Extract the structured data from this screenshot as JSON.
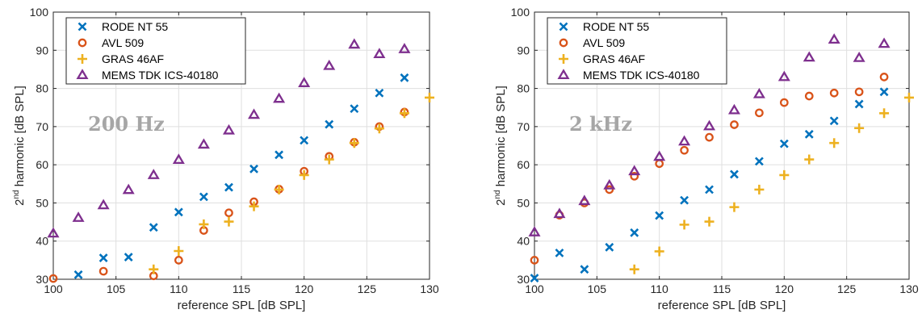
{
  "chart_data": [
    {
      "type": "scatter",
      "annotation": "200 Hz",
      "xlabel": "reference SPL [dB SPL]",
      "ylabel": {
        "pre": "2",
        "sup": "nd",
        "post": " harmonic [dB SPL]"
      },
      "xlim": [
        100,
        130
      ],
      "ylim": [
        30,
        100
      ],
      "xticks": [
        100,
        105,
        110,
        115,
        120,
        125,
        130
      ],
      "yticks": [
        30,
        40,
        50,
        60,
        70,
        80,
        90,
        100
      ],
      "grid": true,
      "legend_position": "top-left",
      "series": [
        {
          "name": "RODE NT 55",
          "marker": "x",
          "color": "#0072BD",
          "x": [
            102,
            104,
            106,
            108,
            110,
            112,
            114,
            116,
            118,
            120,
            122,
            124,
            126,
            128
          ],
          "y": [
            31.2,
            35.6,
            35.8,
            43.6,
            47.6,
            51.6,
            54.1,
            58.9,
            62.6,
            66.4,
            70.6,
            74.7,
            78.8,
            82.8
          ]
        },
        {
          "name": "AVL 509",
          "marker": "o",
          "color": "#D95319",
          "x": [
            100,
            104,
            108,
            110,
            112,
            114,
            116,
            118,
            120,
            122,
            124,
            126,
            128
          ],
          "y": [
            30.2,
            32.1,
            30.9,
            35.0,
            42.8,
            47.4,
            50.3,
            53.6,
            58.3,
            62.2,
            65.9,
            70.0,
            73.8
          ]
        },
        {
          "name": "GRAS 46AF",
          "marker": "+",
          "color": "#EDB120",
          "x": [
            108,
            110,
            112,
            114,
            116,
            118,
            120,
            122,
            124,
            126,
            128,
            130
          ],
          "y": [
            32.6,
            37.4,
            44.4,
            45.1,
            49.1,
            53.5,
            57.3,
            61.4,
            65.7,
            69.5,
            73.5,
            77.6
          ]
        },
        {
          "name": "MEMS TDK ICS-40180",
          "marker": "triangle",
          "color": "#7E2F8E",
          "x": [
            100,
            102,
            104,
            106,
            108,
            110,
            112,
            114,
            116,
            118,
            120,
            122,
            124,
            126,
            128
          ],
          "y": [
            42.0,
            46.1,
            49.4,
            53.4,
            57.3,
            61.3,
            65.3,
            69.0,
            73.1,
            77.3,
            81.4,
            85.9,
            91.5,
            89.0,
            90.3
          ]
        }
      ]
    },
    {
      "type": "scatter",
      "annotation": "2 kHz",
      "xlabel": "reference SPL [dB SPL]",
      "ylabel": {
        "pre": "2",
        "sup": "nd",
        "post": " harmonic [dB SPL]"
      },
      "xlim": [
        100,
        130
      ],
      "ylim": [
        30,
        100
      ],
      "xticks": [
        100,
        105,
        110,
        115,
        120,
        125,
        130
      ],
      "yticks": [
        30,
        40,
        50,
        60,
        70,
        80,
        90,
        100
      ],
      "grid": true,
      "legend_position": "top-left",
      "series": [
        {
          "name": "RODE NT 55",
          "marker": "x",
          "color": "#0072BD",
          "x": [
            100,
            102,
            104,
            106,
            108,
            110,
            112,
            114,
            116,
            118,
            120,
            122,
            124,
            126,
            128
          ],
          "y": [
            30.3,
            36.9,
            32.6,
            38.4,
            42.2,
            46.7,
            50.7,
            53.5,
            57.5,
            60.9,
            65.5,
            68.0,
            71.5,
            75.9,
            79.1
          ]
        },
        {
          "name": "AVL 509",
          "marker": "o",
          "color": "#D95319",
          "x": [
            100,
            102,
            104,
            106,
            108,
            110,
            112,
            114,
            116,
            118,
            120,
            122,
            124,
            126,
            128
          ],
          "y": [
            35.0,
            46.8,
            50.0,
            53.5,
            57.0,
            60.3,
            63.8,
            67.2,
            70.5,
            73.6,
            76.3,
            78.0,
            78.8,
            79.1,
            83.0
          ]
        },
        {
          "name": "GRAS 46AF",
          "marker": "+",
          "color": "#EDB120",
          "x": [
            108,
            110,
            112,
            114,
            116,
            118,
            120,
            122,
            124,
            126,
            128,
            130
          ],
          "y": [
            32.6,
            37.3,
            44.3,
            45.1,
            48.9,
            53.5,
            57.3,
            61.4,
            65.7,
            69.6,
            73.5,
            77.6
          ]
        },
        {
          "name": "MEMS TDK ICS-40180",
          "marker": "triangle",
          "color": "#7E2F8E",
          "x": [
            100,
            102,
            104,
            106,
            108,
            110,
            112,
            114,
            116,
            118,
            120,
            122,
            124,
            126,
            128
          ],
          "y": [
            42.3,
            47.1,
            50.5,
            54.6,
            58.3,
            62.1,
            66.1,
            70.1,
            74.3,
            78.5,
            83.0,
            88.1,
            92.8,
            88.0,
            91.7
          ]
        }
      ]
    }
  ]
}
